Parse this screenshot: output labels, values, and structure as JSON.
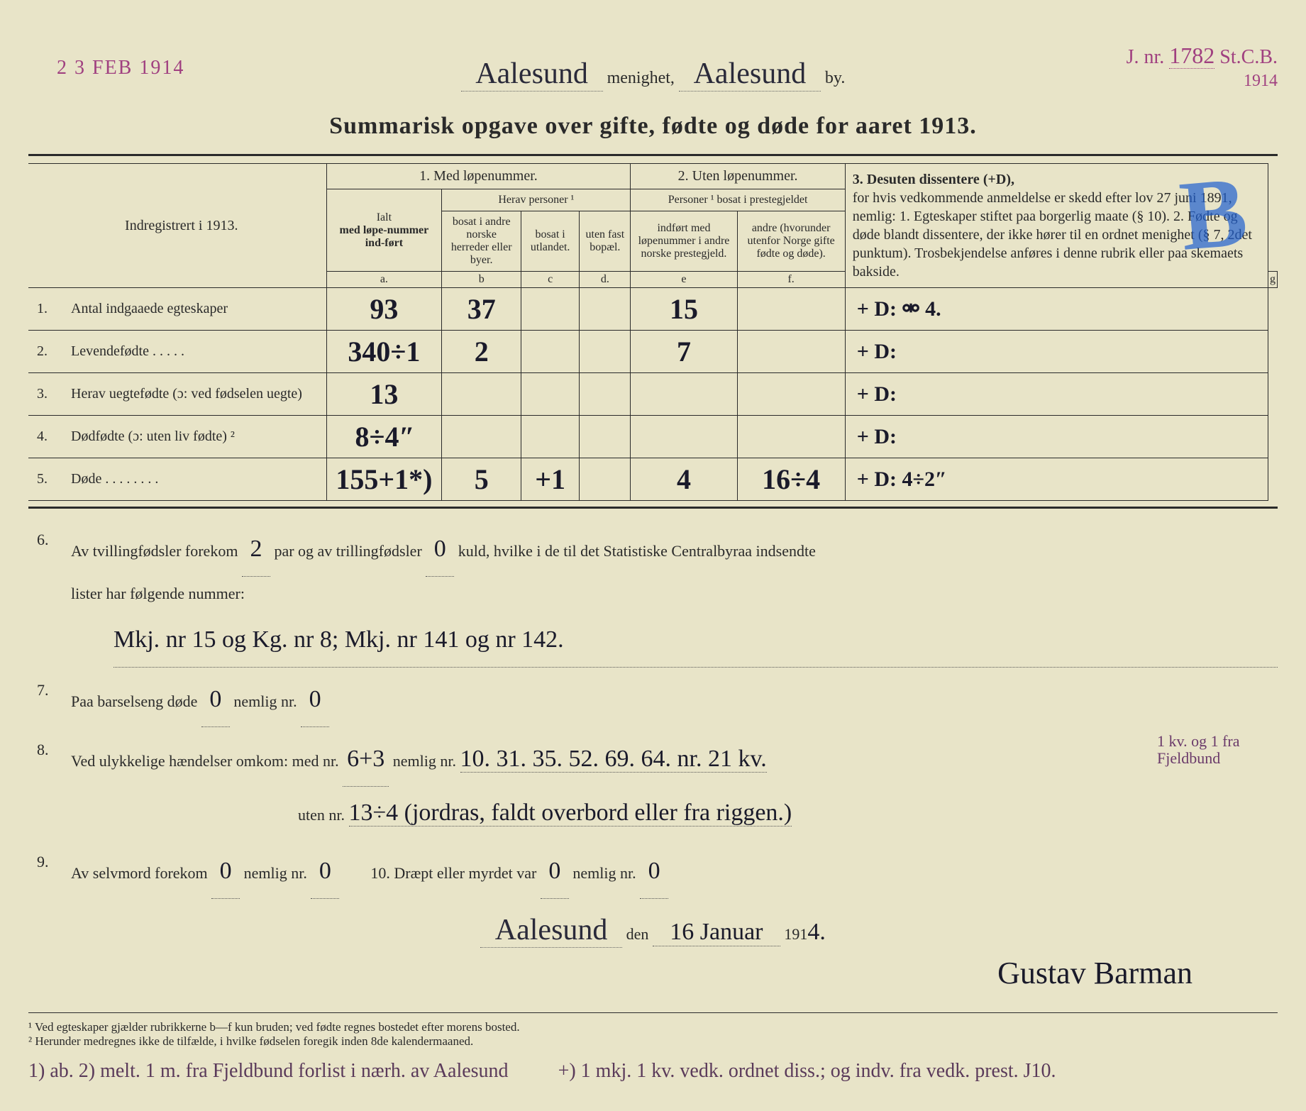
{
  "stamps": {
    "date": "2 3 FEB 1914",
    "reg_prefix": "J. nr.",
    "reg_num": "1782",
    "reg_suffix": "St.C.B.",
    "reg_year": "1914"
  },
  "header": {
    "parish_hand": "Aalesund",
    "menighet_label": "menighet,",
    "town_hand": "Aalesund",
    "by_label": "by."
  },
  "title": "Summarisk opgave over gifte, fødte og døde for aaret 1913.",
  "table": {
    "left_header": "Indregistrert i 1913.",
    "col1_header": "1. Med løpenummer.",
    "col1_ialt": "Ialt",
    "col1_ialt2": "med løpe-nummer ind-ført",
    "col1_herav": "Herav personer ¹",
    "col1_b": "bosat i andre norske herreder eller byer.",
    "col1_c": "bosat i utlandet.",
    "col1_d": "uten fast bopæl.",
    "col2_header": "2. Uten løpenummer.",
    "col2_sub": "Personer ¹ bosat i prestegjeldet",
    "col2_e": "indført med løpenummer i andre norske prestegjeld.",
    "col2_f": "andre (hvorunder utenfor Norge gifte fødte og døde).",
    "col3_header": "3. Desuten dissentere (+D),",
    "col3_body": "for hvis vedkommende anmeldelse er skedd efter lov 27 juni 1891, nemlig: 1. Egteskaper stiftet paa borgerlig maate (§ 10). 2. Fødte og døde blandt dissentere, der ikke hører til en ordnet menighet (§ 7, 2det punktum). Trosbekjendelse anføres i denne rubrik eller paa skemaets bakside.",
    "blue_mark": "B",
    "letters": {
      "a": "a.",
      "b": "b",
      "c": "c",
      "d": "d.",
      "e": "e",
      "f": "f.",
      "g": "g"
    },
    "rows": [
      {
        "n": "1.",
        "label": "Antal indgaaede egteskaper",
        "a": "93",
        "b": "37",
        "c": "",
        "d": "",
        "e": "15",
        "f": "",
        "g": "+ D:  ⚮ 4."
      },
      {
        "n": "2.",
        "label": "Levendefødte   .   .   .   .   .",
        "a": "340÷1",
        "b": "2",
        "c": "",
        "d": "",
        "e": "7",
        "f": "",
        "g": "+ D:"
      },
      {
        "n": "3.",
        "label": "Herav uegtefødte (ɔ: ved fødselen uegte)",
        "a": "13",
        "b": "",
        "c": "",
        "d": "",
        "e": "",
        "f": "",
        "g": "+ D:"
      },
      {
        "n": "4.",
        "label": "Dødfødte (ɔ: uten liv fødte) ²",
        "a": "8÷4ʺ",
        "b": "",
        "c": "",
        "d": "",
        "e": "",
        "f": "",
        "g": "+ D:"
      },
      {
        "n": "5.",
        "label": "Døde   .   .   .   .   .   .   .   .",
        "a": "155+1*)",
        "b": "5",
        "c": "+1",
        "d": "",
        "e": "4",
        "f": "16÷4",
        "g": "+ D:  4÷2ʺ"
      }
    ]
  },
  "questions": {
    "q6a": "Av tvillingfødsler forekom",
    "q6_twins": "2",
    "q6b": "par og av trillingfødsler",
    "q6_trip": "0",
    "q6c": "kuld, hvilke i de til det Statistiske Centralbyraa indsendte",
    "q6d": "lister har følgende nummer:",
    "q6_hand": "Mkj. nr 15 og Kg. nr 8;      Mkj. nr 141 og nr 142.",
    "q7a": "Paa barselseng døde",
    "q7_v": "0",
    "q7b": "nemlig nr.",
    "q7_nr": "0",
    "q8a": "Ved ulykkelige hændelser omkom: med nr.",
    "q8_med": "6+3",
    "q8b": "nemlig nr.",
    "q8_list": "10.  31.  35.  52.  69.  64.  nr. 21 kv.",
    "q8c": "uten nr.",
    "q8_uten": "13÷4 (jordras, faldt overbord eller fra riggen.)",
    "q8_margin": "1 kv. og 1 fra Fjeldbund",
    "q9a": "Av selvmord forekom",
    "q9_v": "0",
    "q9b": "nemlig nr.",
    "q9_nr": "0",
    "q10a": "10.   Dræpt eller myrdet var",
    "q10_v": "0",
    "q10b": "nemlig nr.",
    "q10_nr": "0"
  },
  "signature": {
    "place": "Aalesund",
    "den": "den",
    "date": "16 Januar",
    "year_prefix": "191",
    "year": "4.",
    "name": "Gustav Barman"
  },
  "footnotes": {
    "f1": "¹ Ved egteskaper gjælder rubrikkerne b—f kun bruden; ved fødte regnes bostedet efter morens bosted.",
    "f2": "² Herunder medregnes ikke de tilfælde, i hvilke fødselen foregik inden 8de kalendermaaned."
  },
  "bottom": {
    "left": "1) ab.   2) melt. 1 m. fra Fjeldbund forlist i nærh. av Aalesund",
    "right": "+) 1 mkj. 1 kv. vedk. ordnet diss.; og indv. fra vedk. prest. J10."
  }
}
